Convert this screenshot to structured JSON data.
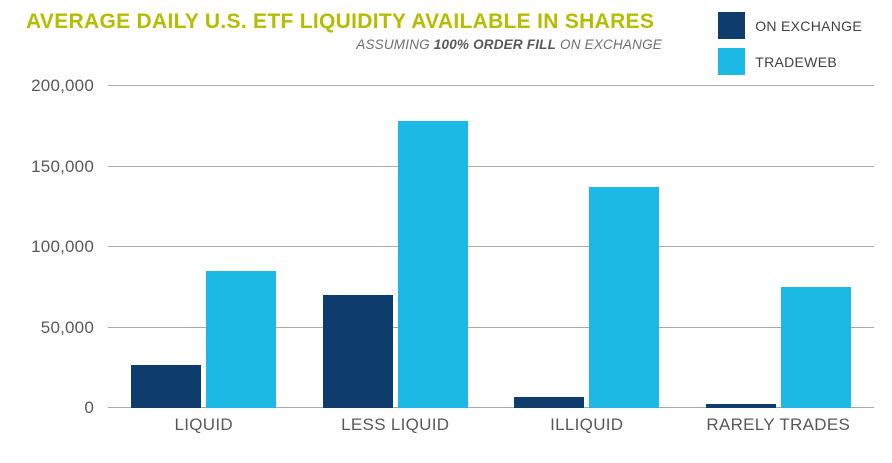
{
  "chart_data": {
    "type": "bar",
    "title": "AVERAGE DAILY U.S. ETF LIQUIDITY AVAILABLE IN SHARES",
    "subtitle": {
      "prefix": "ASSUMING ",
      "bold": "100% ORDER FILL",
      "suffix": " ON EXCHANGE"
    },
    "categories": [
      "LIQUID",
      "LESS LIQUID",
      "ILLIQUID",
      "RARELY TRADES"
    ],
    "series": [
      {
        "name": "ON EXCHANGE",
        "color": "#0e3d6d",
        "values": [
          27000,
          70000,
          7000,
          2500
        ]
      },
      {
        "name": "TRADEWEB",
        "color": "#1cb9e5",
        "values": [
          85000,
          178000,
          137000,
          75000
        ]
      }
    ],
    "ylim": [
      0,
      200000
    ],
    "yticks": [
      0,
      50000,
      100000,
      150000,
      200000
    ],
    "ytick_labels": [
      "0",
      "50,000",
      "100,000",
      "150,000",
      "200,000"
    ],
    "grid": "horizontal",
    "legend_position": "top-right",
    "colors": {
      "title": "#b5bd00",
      "subtitle": "#6d6e71",
      "axis_text": "#58595b",
      "gridline": "#a7a9ac"
    }
  }
}
